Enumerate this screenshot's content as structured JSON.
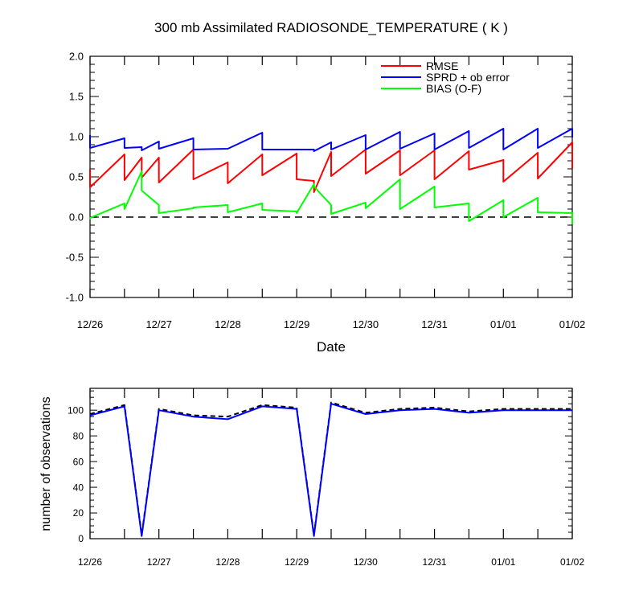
{
  "title": "300 mb Assimilated RADIOSONDE_TEMPERATURE ( K )",
  "chart_data": [
    {
      "type": "line",
      "title": "300 mb Assimilated RADIOSONDE_TEMPERATURE ( K )",
      "xlabel": "Date",
      "ylabel": "",
      "ylim": [
        -1.0,
        2.0
      ],
      "xlim": [
        0,
        7
      ],
      "x_ticks": [
        {
          "x": 0,
          "label": "12/26"
        },
        {
          "x": 1,
          "label": "12/27"
        },
        {
          "x": 2,
          "label": "12/28"
        },
        {
          "x": 3,
          "label": "12/29"
        },
        {
          "x": 4,
          "label": "12/30"
        },
        {
          "x": 5,
          "label": "12/31"
        },
        {
          "x": 6,
          "label": "01/01"
        },
        {
          "x": 7,
          "label": "01/02"
        }
      ],
      "y_ticks": [
        {
          "y": 2.0,
          "label": "2.0"
        },
        {
          "y": 1.5,
          "label": "1.5"
        },
        {
          "y": 1.0,
          "label": "1.0"
        },
        {
          "y": 0.5,
          "label": "0.5"
        },
        {
          "y": 0.0,
          "label": "0.0"
        },
        {
          "y": -0.5,
          "label": "-0.5"
        },
        {
          "y": -1.0,
          "label": "-1.0"
        }
      ],
      "zero_line": 0.0,
      "legend_position": "top-right",
      "grid": false,
      "series": [
        {
          "name": "RMSE",
          "color": "#ff0000",
          "points": [
            [
              0,
              0.6
            ],
            [
              0,
              0.37
            ],
            [
              0.5,
              0.78
            ],
            [
              0.5,
              0.46
            ],
            [
              0.75,
              0.74
            ],
            [
              0.75,
              0.49
            ],
            [
              1,
              0.74
            ],
            [
              1,
              0.43
            ],
            [
              1.5,
              0.84
            ],
            [
              1.5,
              0.47
            ],
            [
              2,
              0.68
            ],
            [
              2,
              0.42
            ],
            [
              2.5,
              0.78
            ],
            [
              2.5,
              0.52
            ],
            [
              3,
              0.79
            ],
            [
              3,
              0.47
            ],
            [
              3.25,
              0.45
            ],
            [
              3.25,
              0.31
            ],
            [
              3.5,
              0.81
            ],
            [
              3.5,
              0.51
            ],
            [
              4,
              0.84
            ],
            [
              4,
              0.54
            ],
            [
              4.5,
              0.83
            ],
            [
              4.5,
              0.52
            ],
            [
              5,
              0.83
            ],
            [
              5,
              0.47
            ],
            [
              5.5,
              0.82
            ],
            [
              5.5,
              0.59
            ],
            [
              6,
              0.71
            ],
            [
              6,
              0.44
            ],
            [
              6.5,
              0.8
            ],
            [
              6.5,
              0.48
            ],
            [
              7,
              0.93
            ],
            [
              7,
              0.6
            ]
          ]
        },
        {
          "name": "SPRD + ob error",
          "color": "#0000ff",
          "points": [
            [
              0,
              1.02
            ],
            [
              0,
              0.86
            ],
            [
              0.5,
              0.98
            ],
            [
              0.5,
              0.86
            ],
            [
              0.75,
              0.87
            ],
            [
              0.75,
              0.83
            ],
            [
              1,
              0.94
            ],
            [
              1,
              0.85
            ],
            [
              1.5,
              0.98
            ],
            [
              1.5,
              0.84
            ],
            [
              2,
              0.85
            ],
            [
              2,
              0.85
            ],
            [
              2.5,
              1.05
            ],
            [
              2.5,
              0.84
            ],
            [
              3,
              0.84
            ],
            [
              3,
              0.84
            ],
            [
              3.25,
              0.84
            ],
            [
              3.25,
              0.82
            ],
            [
              3.5,
              0.93
            ],
            [
              3.5,
              0.84
            ],
            [
              4,
              1.02
            ],
            [
              4,
              0.84
            ],
            [
              4.5,
              1.06
            ],
            [
              4.5,
              0.85
            ],
            [
              5,
              1.04
            ],
            [
              5,
              0.84
            ],
            [
              5.5,
              1.07
            ],
            [
              5.5,
              0.86
            ],
            [
              6,
              1.1
            ],
            [
              6,
              0.84
            ],
            [
              6.5,
              1.1
            ],
            [
              6.5,
              0.86
            ],
            [
              7,
              1.1
            ],
            [
              7,
              0.99
            ]
          ]
        },
        {
          "name": "BIAS (O-F)",
          "color": "#00ff00",
          "points": [
            [
              0,
              -0.03
            ],
            [
              0,
              -0.01
            ],
            [
              0.5,
              0.17
            ],
            [
              0.5,
              0.1
            ],
            [
              0.75,
              0.57
            ],
            [
              0.75,
              0.33
            ],
            [
              1,
              0.15
            ],
            [
              1,
              0.05
            ],
            [
              1.5,
              0.11
            ],
            [
              1.5,
              0.12
            ],
            [
              2,
              0.15
            ],
            [
              2,
              0.06
            ],
            [
              2.5,
              0.17
            ],
            [
              2.5,
              0.09
            ],
            [
              3,
              0.07
            ],
            [
              3,
              0.05
            ],
            [
              3.25,
              0.41
            ],
            [
              3.25,
              0.38
            ],
            [
              3.5,
              0.15
            ],
            [
              3.5,
              0.04
            ],
            [
              4,
              0.18
            ],
            [
              4,
              0.11
            ],
            [
              4.5,
              0.47
            ],
            [
              4.5,
              0.1
            ],
            [
              5,
              0.38
            ],
            [
              5,
              0.12
            ],
            [
              5.5,
              0.17
            ],
            [
              5.5,
              -0.05
            ],
            [
              6,
              0.21
            ],
            [
              6,
              0.0
            ],
            [
              6.5,
              0.24
            ],
            [
              6.5,
              0.06
            ],
            [
              7,
              0.05
            ],
            [
              7,
              -0.09
            ]
          ]
        }
      ]
    },
    {
      "type": "line",
      "title": "",
      "xlabel": "",
      "ylabel": "number of observations",
      "ylim": [
        0,
        117
      ],
      "xlim": [
        0,
        7
      ],
      "x_ticks": [
        {
          "x": 0,
          "label": "12/26"
        },
        {
          "x": 1,
          "label": "12/27"
        },
        {
          "x": 2,
          "label": "12/28"
        },
        {
          "x": 3,
          "label": "12/29"
        },
        {
          "x": 4,
          "label": "12/30"
        },
        {
          "x": 5,
          "label": "12/31"
        },
        {
          "x": 6,
          "label": "01/01"
        },
        {
          "x": 7,
          "label": "01/02"
        }
      ],
      "y_ticks": [
        {
          "y": 0,
          "label": "0"
        },
        {
          "y": 20,
          "label": "20"
        },
        {
          "y": 40,
          "label": "40"
        },
        {
          "y": 60,
          "label": "60"
        },
        {
          "y": 80,
          "label": "80"
        },
        {
          "y": 100,
          "label": "100"
        }
      ],
      "grid": false,
      "series": [
        {
          "style": "dashed",
          "color": "#000000",
          "x": [
            0,
            0.5,
            0.75,
            1,
            1.5,
            2,
            2.5,
            3,
            3.25,
            3.5,
            4,
            4.5,
            5,
            5.5,
            6,
            6.5,
            7
          ],
          "values": [
            97,
            104,
            3,
            101,
            96,
            95,
            104,
            102,
            3,
            106,
            98,
            101,
            102,
            99,
            101,
            101,
            101
          ]
        },
        {
          "style": "solid",
          "color": "#0000ff",
          "x": [
            0,
            0.5,
            0.75,
            1,
            1.5,
            2,
            2.5,
            3,
            3.25,
            3.5,
            4,
            4.5,
            5,
            5.5,
            6,
            6.5,
            7
          ],
          "values": [
            96,
            103,
            2,
            100,
            95,
            93,
            103,
            101,
            2,
            105,
            97,
            100,
            101,
            98,
            100,
            100,
            100
          ]
        }
      ]
    }
  ]
}
